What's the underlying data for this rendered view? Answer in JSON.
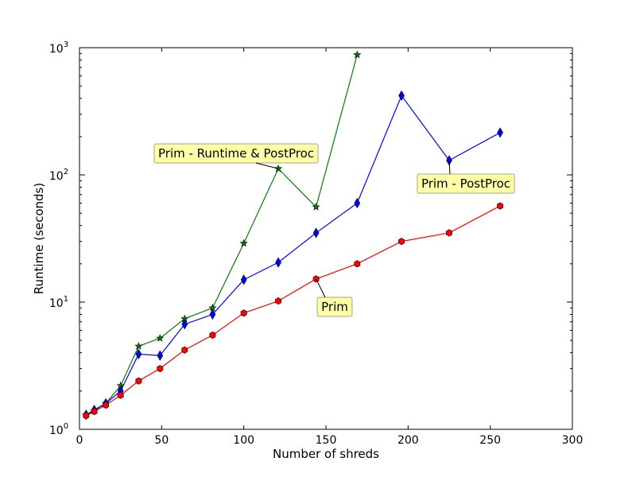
{
  "chart_data": {
    "type": "line",
    "xlabel": "Number of shreds",
    "ylabel": "Runtime (seconds)",
    "xlim": [
      0,
      300
    ],
    "ylim": [
      1,
      1000
    ],
    "yscale": "log",
    "grid": false,
    "x_ticks": [
      "0",
      "50",
      "100",
      "150",
      "200",
      "250",
      "300"
    ],
    "y_ticks": [
      {
        "base": "10",
        "exp": "0",
        "value": 1
      },
      {
        "base": "10",
        "exp": "1",
        "value": 10
      },
      {
        "base": "10",
        "exp": "2",
        "value": 100
      },
      {
        "base": "10",
        "exp": "3",
        "value": 1000
      }
    ],
    "series": [
      {
        "name": "Prim",
        "color": "#ff0000",
        "marker": "hexagon",
        "x": [
          4,
          9,
          16,
          25,
          36,
          49,
          64,
          81,
          100,
          121,
          144,
          169,
          196,
          225,
          256
        ],
        "y": [
          1.28,
          1.38,
          1.55,
          1.85,
          2.4,
          3.0,
          4.2,
          5.5,
          8.2,
          10.2,
          15.2,
          20.0,
          30.0,
          35.0,
          57.0
        ]
      },
      {
        "name": "Prim - PostProc",
        "color": "#0000ff",
        "marker": "diamond",
        "x": [
          4,
          9,
          16,
          25,
          36,
          49,
          64,
          81,
          100,
          121,
          144,
          169,
          196,
          225,
          256
        ],
        "y": [
          1.3,
          1.42,
          1.6,
          2.0,
          3.9,
          3.8,
          6.7,
          8.0,
          15.0,
          20.5,
          35.0,
          60.0,
          420.0,
          130.0,
          215.0
        ]
      },
      {
        "name": "Prim - Runtime & PostProc",
        "color": "#008000",
        "marker": "star",
        "x": [
          4,
          9,
          16,
          25,
          36,
          49,
          64,
          81,
          100,
          121,
          144,
          169
        ],
        "y": [
          1.3,
          1.4,
          1.6,
          2.2,
          4.5,
          5.2,
          7.4,
          9.0,
          29.0,
          112.0,
          56.0,
          880.0
        ]
      }
    ],
    "annotations": [
      {
        "text": "Prim - Runtime & PostProc",
        "series": 2,
        "point_x": 121,
        "point_y": 112
      },
      {
        "text": "Prim - PostProc",
        "series": 1,
        "point_x": 225,
        "point_y": 130
      },
      {
        "text": "Prim",
        "series": 0,
        "point_x": 144,
        "point_y": 15.2
      }
    ]
  }
}
